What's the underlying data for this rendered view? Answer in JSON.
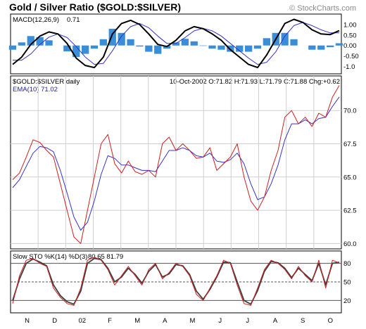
{
  "header": {
    "title": "Gold / Silver Ratio ($GOLD:$SILVER)",
    "watermark": "© StockCharts.com"
  },
  "chart_data": [
    {
      "type": "area",
      "panel": "macd",
      "label": "MACD(12,26,9)",
      "value_label": "0.71",
      "ylim": [
        -1.35,
        1.5
      ],
      "yticks": [
        "1.00",
        "0.50",
        "0.00",
        "-0.50",
        "-1.0"
      ],
      "ytick_values": [
        1.0,
        0.5,
        0.0,
        -0.5,
        -1.0
      ],
      "series": [
        {
          "name": "MACD",
          "color": "#000000",
          "values": [
            -0.9,
            -0.55,
            0.05,
            0.45,
            0.65,
            0.55,
            0.1,
            -0.6,
            -0.95,
            -1.05,
            -0.55,
            0.55,
            1.05,
            1.2,
            1.0,
            0.55,
            0.05,
            -0.05,
            0.25,
            0.7,
            0.9,
            0.8,
            0.55,
            0.25,
            -0.2,
            -0.55,
            -0.9,
            -1.05,
            -0.45,
            0.3,
            1.05,
            1.25,
            1.1,
            0.75,
            0.55,
            0.52,
            0.71
          ]
        },
        {
          "name": "Signal",
          "color": "#3333cc",
          "values": [
            -0.7,
            -0.7,
            -0.4,
            0.05,
            0.4,
            0.55,
            0.38,
            -0.05,
            -0.55,
            -0.9,
            -0.85,
            -0.25,
            0.45,
            0.9,
            1.05,
            0.85,
            0.45,
            0.1,
            0.1,
            0.38,
            0.7,
            0.82,
            0.7,
            0.45,
            0.1,
            -0.25,
            -0.6,
            -0.9,
            -0.8,
            -0.3,
            0.45,
            0.95,
            1.1,
            0.95,
            0.75,
            0.6,
            0.6
          ]
        },
        {
          "name": "Histogram",
          "color": "#3a8ed8",
          "values": [
            -0.2,
            0.15,
            0.45,
            0.4,
            0.25,
            0.0,
            -0.28,
            -0.55,
            -0.4,
            -0.15,
            0.3,
            0.8,
            0.6,
            0.3,
            -0.05,
            -0.3,
            -0.4,
            -0.15,
            0.15,
            0.32,
            0.2,
            -0.02,
            -0.15,
            -0.2,
            -0.3,
            -0.3,
            -0.3,
            -0.15,
            0.35,
            0.6,
            0.6,
            0.3,
            0.0,
            -0.2,
            -0.2,
            -0.08,
            0.11
          ]
        }
      ]
    },
    {
      "type": "line",
      "panel": "price",
      "label": "$GOLD:$SILVER daily",
      "ema_label": "EMA(10) 71.02",
      "ohlc_text": "10-Oct-2002 O:71.82 H:71.93 L:71.79 C:71.88 Chg:+0.62",
      "ylim": [
        59.6,
        72.6
      ],
      "yticks": [
        "70.0",
        "67.5",
        "65.0",
        "62.5",
        "60.0"
      ],
      "ytick_values": [
        70.0,
        67.5,
        65.0,
        62.5,
        60.0
      ],
      "grid": true,
      "series": [
        {
          "name": "Price",
          "color": "#cc2020",
          "values": [
            64.8,
            65.3,
            66.5,
            67.8,
            67.6,
            67.0,
            66.5,
            64.5,
            62.5,
            60.5,
            60.0,
            62.5,
            65.0,
            67.5,
            68.2,
            66.0,
            65.3,
            66.2,
            65.4,
            65.2,
            65.5,
            65.0,
            67.5,
            68.0,
            67.0,
            67.5,
            67.0,
            66.4,
            66.5,
            67.2,
            65.5,
            66.0,
            66.5,
            67.5,
            65.0,
            63.2,
            62.5,
            63.5,
            65.5,
            67.0,
            69.5,
            70.0,
            69.0,
            69.5,
            68.8,
            69.8,
            69.5,
            71.0,
            71.88
          ]
        },
        {
          "name": "EMA(10)",
          "color": "#3333cc",
          "values": [
            64.2,
            64.8,
            65.8,
            66.8,
            67.3,
            67.2,
            66.9,
            65.5,
            63.8,
            62.0,
            61.0,
            61.6,
            63.2,
            65.2,
            66.6,
            66.4,
            65.9,
            65.9,
            65.7,
            65.5,
            65.5,
            65.4,
            66.2,
            67.0,
            67.0,
            67.2,
            67.0,
            66.6,
            66.5,
            66.8,
            66.2,
            66.1,
            66.3,
            66.8,
            66.0,
            64.5,
            63.3,
            63.5,
            64.5,
            65.9,
            67.8,
            69.0,
            69.0,
            69.3,
            69.0,
            69.4,
            69.5,
            70.3,
            71.02
          ]
        }
      ]
    },
    {
      "type": "line",
      "panel": "stochastic",
      "label": "Slow STO %K(14) %D(3)",
      "value_label": "80.65 81.79",
      "ylim": [
        0,
        100
      ],
      "yticks": [
        "80",
        "50",
        "20"
      ],
      "ytick_values": [
        80,
        50,
        20
      ],
      "x_labels": [
        "N",
        "D",
        "02",
        "F",
        "M",
        "A",
        "M",
        "J",
        "J",
        "A",
        "S",
        "O"
      ],
      "series": [
        {
          "name": "%K",
          "color": "#cc2020",
          "values": [
            15,
            60,
            85,
            88,
            80,
            75,
            40,
            25,
            15,
            12,
            40,
            85,
            90,
            85,
            70,
            45,
            60,
            75,
            60,
            45,
            70,
            80,
            55,
            65,
            80,
            75,
            60,
            30,
            20,
            40,
            60,
            85,
            80,
            45,
            15,
            12,
            40,
            70,
            85,
            80,
            70,
            55,
            75,
            60,
            50,
            85,
            40,
            85,
            80.65
          ]
        },
        {
          "name": "%D",
          "color": "#404040",
          "values": [
            20,
            55,
            80,
            87,
            82,
            76,
            45,
            28,
            18,
            14,
            35,
            80,
            88,
            86,
            72,
            50,
            58,
            72,
            62,
            48,
            67,
            78,
            58,
            63,
            78,
            76,
            62,
            35,
            22,
            38,
            58,
            82,
            81,
            50,
            20,
            14,
            36,
            67,
            83,
            81,
            72,
            57,
            72,
            62,
            52,
            80,
            45,
            80,
            81.79
          ]
        }
      ]
    }
  ]
}
